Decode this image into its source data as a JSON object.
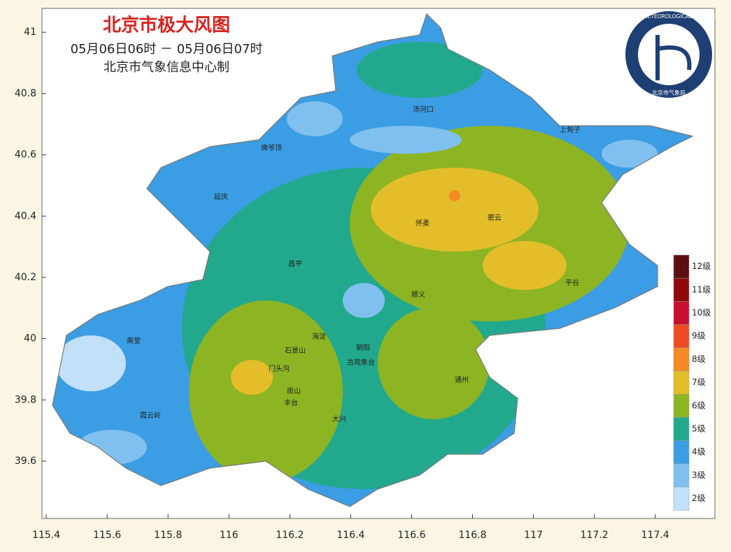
{
  "chart_data": {
    "type": "map",
    "title": "北京市极大风图",
    "subtitle": "05月06日06时 － 05月06日07时",
    "credit": "北京市气象信息中心制",
    "logo_text": "BEIJING METEOROLOGICAL SERVICE",
    "logo_text_cn": "北京市气象局",
    "xlim": [
      115.386,
      117.596
    ],
    "ylim": [
      39.413,
      41.078
    ],
    "xticks": [
      115.4,
      115.6,
      115.8,
      116,
      116.2,
      116.4,
      116.6,
      116.8,
      117,
      117.2,
      117.4
    ],
    "yticks": [
      39.6,
      39.8,
      40,
      40.2,
      40.4,
      40.6,
      40.8,
      41
    ],
    "legend": [
      {
        "label": "12级",
        "color": "#5c1010"
      },
      {
        "label": "11级",
        "color": "#8e0a0a"
      },
      {
        "label": "10级",
        "color": "#c8102e"
      },
      {
        "label": "9级",
        "color": "#ef4b23"
      },
      {
        "label": "8级",
        "color": "#f58a23"
      },
      {
        "label": "7级",
        "color": "#e3bd2a"
      },
      {
        "label": "6级",
        "color": "#8db423"
      },
      {
        "label": "5级",
        "color": "#22a98d"
      },
      {
        "label": "4级",
        "color": "#3b9de3"
      },
      {
        "label": "3级",
        "color": "#80c0ef"
      },
      {
        "label": "2级",
        "color": "#c2e0f7"
      }
    ],
    "places": [
      "佛爷顶",
      "汤河口",
      "上甸子",
      "延庆",
      "怀柔",
      "密云",
      "昌平",
      "顺义",
      "平谷",
      "海淀",
      "朝阳",
      "古观象台",
      "门头沟",
      "石景山",
      "丰台",
      "通州",
      "大兴",
      "房山",
      "霞云岭",
      "斋堂"
    ]
  }
}
